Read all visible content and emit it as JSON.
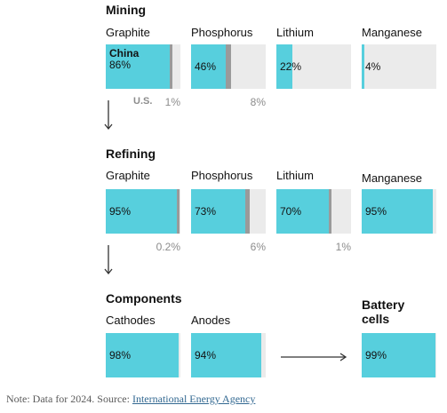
{
  "chart_data": {
    "type": "bar",
    "series_labels": {
      "china": "China",
      "us": "U.S."
    },
    "stages": [
      {
        "title": "Mining",
        "items": [
          {
            "name": "Graphite",
            "china": 86,
            "china_label": "86%",
            "us": 1,
            "us_label": "1%"
          },
          {
            "name": "Phosphorus",
            "china": 46,
            "china_label": "46%",
            "us": 8,
            "us_label": "8%"
          },
          {
            "name": "Lithium",
            "china": 22,
            "china_label": "22%",
            "us": null,
            "us_label": ""
          },
          {
            "name": "Manganese",
            "china": 4,
            "china_label": "4%",
            "us": null,
            "us_label": ""
          }
        ]
      },
      {
        "title": "Refining",
        "items": [
          {
            "name": "Graphite",
            "china": 95,
            "china_label": "95%",
            "us": 0.2,
            "us_label": "0.2%"
          },
          {
            "name": "Phosphorus",
            "china": 73,
            "china_label": "73%",
            "us": 6,
            "us_label": "6%"
          },
          {
            "name": "Lithium",
            "china": 70,
            "china_label": "70%",
            "us": 1,
            "us_label": "1%"
          },
          {
            "name": "Manganese",
            "china": 95,
            "china_label": "95%",
            "us": null,
            "us_label": ""
          }
        ]
      },
      {
        "title": "Components",
        "items": [
          {
            "name": "Cathodes",
            "china": 98,
            "china_label": "98%",
            "us": null,
            "us_label": ""
          },
          {
            "name": "Anodes",
            "china": 94,
            "china_label": "94%",
            "us": null,
            "us_label": ""
          }
        ]
      },
      {
        "title": "Battery cells",
        "items": [
          {
            "name": "",
            "china": 99,
            "china_label": "99%",
            "us": null,
            "us_label": ""
          }
        ]
      }
    ],
    "colors": {
      "china": "#57cfdd",
      "us": "#9a9a9a",
      "remainder": "#ebebeb"
    }
  },
  "note": {
    "prefix": "Note: Data for 2024. Source: ",
    "source_link": "International Energy Agency"
  }
}
